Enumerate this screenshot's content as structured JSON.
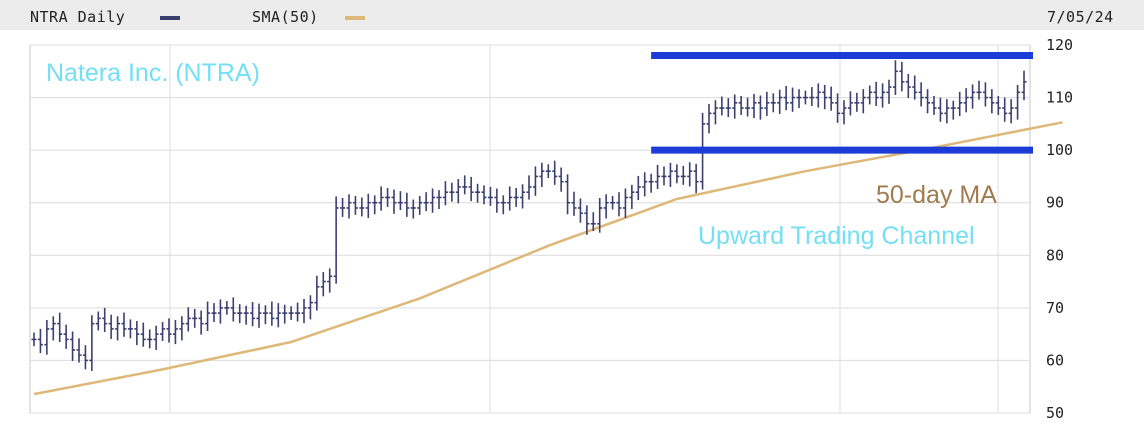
{
  "header": {
    "series_label": "NTRA Daily",
    "sma_label": "SMA(50)",
    "date": "7/05/24"
  },
  "colors": {
    "price": "#3a3f6e",
    "sma": "#ddb878",
    "channel": "#1d3bd6",
    "title_text": "#73dff4",
    "ma_text": "#a27b4c",
    "grid": "#dcdcdc",
    "header_bg": "#ececec"
  },
  "chart_data": {
    "type": "ohlc",
    "title": "Natera Inc. (NTRA)",
    "y_ticks": [
      50,
      60,
      70,
      80,
      90,
      100,
      110,
      120
    ],
    "ylim": [
      50,
      120
    ],
    "grid": true,
    "price_closes": [
      64,
      63,
      66,
      67,
      65,
      64,
      62,
      61,
      60,
      67,
      68,
      67,
      66,
      67,
      66,
      66,
      65,
      64,
      64,
      65,
      66,
      65,
      66,
      67,
      68,
      68,
      67,
      69,
      69,
      70,
      70,
      69,
      69,
      69,
      68,
      69,
      69,
      68,
      69,
      69,
      69,
      69,
      70,
      71,
      74,
      75,
      76,
      89,
      89,
      90,
      89,
      89,
      90,
      90,
      91,
      91,
      90,
      90,
      89,
      89,
      90,
      90,
      91,
      91,
      92,
      92,
      93,
      93,
      92,
      92,
      91,
      91,
      90,
      90,
      91,
      91,
      92,
      93,
      95,
      96,
      96,
      95,
      94,
      90,
      89,
      88,
      86,
      86,
      89,
      90,
      90,
      89,
      91,
      92,
      93,
      94,
      94,
      95,
      95,
      96,
      95,
      95,
      96,
      94,
      105,
      107,
      108,
      108,
      108,
      109,
      108,
      108,
      109,
      108,
      109,
      109,
      110,
      109,
      110,
      110,
      110,
      110,
      111,
      110,
      109,
      107,
      108,
      109,
      109,
      110,
      111,
      110,
      111,
      112,
      115,
      113,
      112,
      111,
      110,
      109,
      108,
      107,
      108,
      108,
      109,
      110,
      111,
      111,
      110,
      109,
      108,
      107,
      108,
      111,
      113
    ],
    "sma_points": {
      "x_index": [
        0,
        20,
        40,
        60,
        80,
        100,
        120,
        140,
        160
      ],
      "values": [
        53.6,
        58.3,
        63.5,
        71.8,
        81.8,
        90.7,
        96.0,
        100.5,
        105.3
      ]
    },
    "channel_lines": [
      {
        "level": 118.0,
        "x_index_start": 96,
        "x_index_end": 160
      },
      {
        "level": 100.0,
        "x_index_start": 96,
        "x_index_end": 160
      }
    ],
    "annotations": {
      "ma_label": "50-day MA",
      "channel_label": "Upward Trading Channel"
    }
  }
}
